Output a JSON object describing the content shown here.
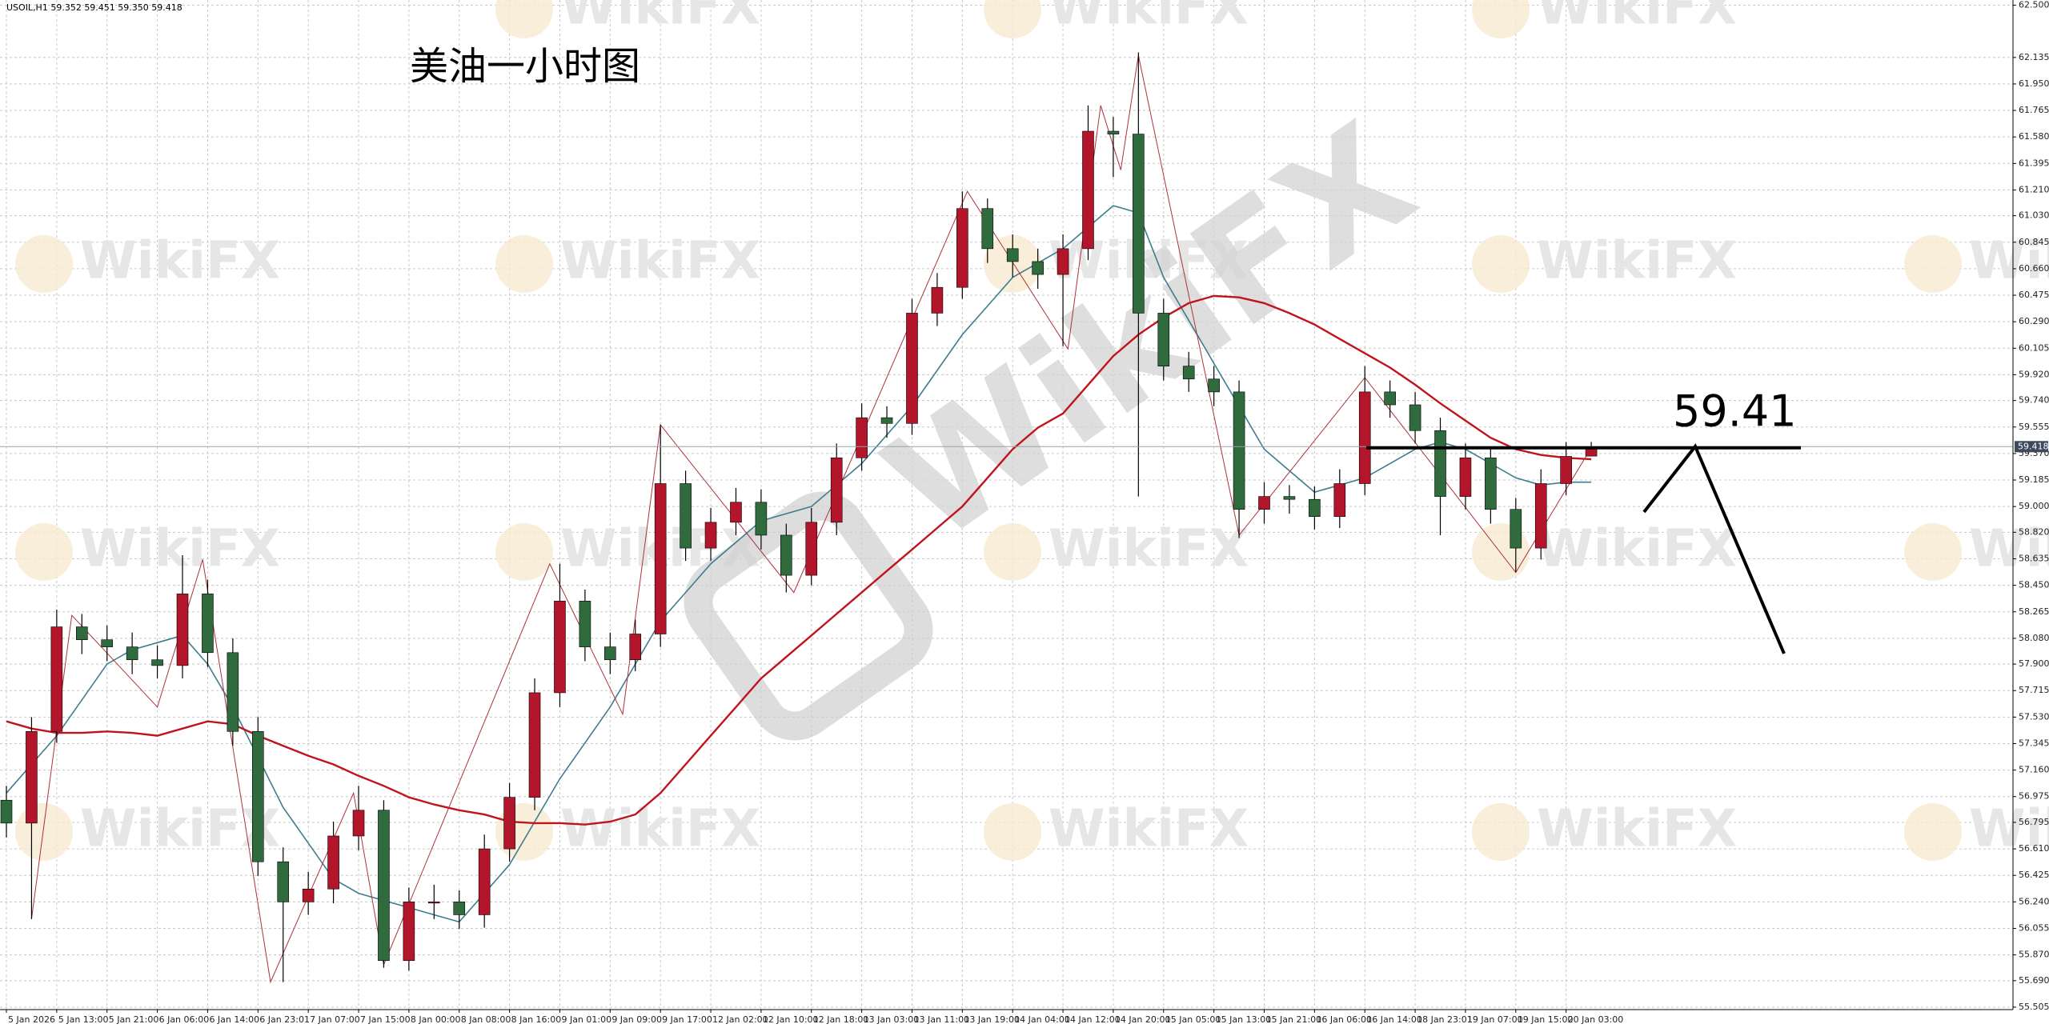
{
  "chart_data": {
    "type": "candlestick",
    "title": "美油一小时图",
    "header": "USOIL,H1  59.352 59.451 59.350 59.418",
    "watermark": "WikiFX",
    "bull_color": "#b3162b",
    "bear_color": "#2f6b3c",
    "grid": true,
    "ylim": [
      55.488,
      62.536
    ],
    "yticks": [
      {
        "value": 62.5,
        "label": "62.500"
      },
      {
        "value": 62.135,
        "label": "62.135"
      },
      {
        "value": 61.95,
        "label": "61.950"
      },
      {
        "value": 61.765,
        "label": "61.765"
      },
      {
        "value": 61.58,
        "label": "61.580"
      },
      {
        "value": 61.395,
        "label": "61.395"
      },
      {
        "value": 61.21,
        "label": "61.210"
      },
      {
        "value": 61.03,
        "label": "61.030"
      },
      {
        "value": 60.845,
        "label": "60.845"
      },
      {
        "value": 60.66,
        "label": "60.660"
      },
      {
        "value": 60.475,
        "label": "60.475"
      },
      {
        "value": 60.29,
        "label": "60.290"
      },
      {
        "value": 60.105,
        "label": "60.105"
      },
      {
        "value": 59.92,
        "label": "59.920"
      },
      {
        "value": 59.74,
        "label": "59.740"
      },
      {
        "value": 59.555,
        "label": "59.555"
      },
      {
        "value": 59.37,
        "label": "59.370"
      },
      {
        "value": 59.185,
        "label": "59.185"
      },
      {
        "value": 59,
        "label": "59.000"
      },
      {
        "value": 58.82,
        "label": "58.820"
      },
      {
        "value": 58.635,
        "label": "58.635"
      },
      {
        "value": 58.45,
        "label": "58.450"
      },
      {
        "value": 58.265,
        "label": "58.265"
      },
      {
        "value": 58.08,
        "label": "58.080"
      },
      {
        "value": 57.9,
        "label": "57.900"
      },
      {
        "value": 57.715,
        "label": "57.715"
      },
      {
        "value": 57.53,
        "label": "57.530"
      },
      {
        "value": 57.345,
        "label": "57.345"
      },
      {
        "value": 57.16,
        "label": "57.160"
      },
      {
        "value": 56.975,
        "label": "56.975"
      },
      {
        "value": 56.795,
        "label": "56.795"
      },
      {
        "value": 56.61,
        "label": "56.610"
      },
      {
        "value": 56.425,
        "label": "56.425"
      },
      {
        "value": 56.24,
        "label": "56.240"
      },
      {
        "value": 56.055,
        "label": "56.055"
      },
      {
        "value": 55.87,
        "label": "55.870"
      },
      {
        "value": 55.69,
        "label": "55.690"
      },
      {
        "value": 55.505,
        "label": "55.505"
      }
    ],
    "categories": [
      "5 Jan 2026",
      null,
      "5 Jan 13:00",
      null,
      "5 Jan 21:00",
      null,
      "6 Jan 06:00",
      null,
      "6 Jan 14:00",
      null,
      "6 Jan 23:01",
      null,
      "7 Jan 07:00",
      null,
      "7 Jan 15:00",
      null,
      "8 Jan 00:00",
      null,
      "8 Jan 08:00",
      null,
      "8 Jan 16:00",
      null,
      "9 Jan 01:00",
      null,
      "9 Jan 09:00",
      null,
      "9 Jan 17:00",
      null,
      "12 Jan 02:00",
      null,
      "12 Jan 10:00",
      null,
      "12 Jan 18:00",
      null,
      "13 Jan 03:00",
      null,
      "13 Jan 11:00",
      null,
      "13 Jan 19:00",
      null,
      "14 Jan 04:00",
      null,
      "14 Jan 12:00",
      null,
      "14 Jan 20:00",
      null,
      "15 Jan 05:00",
      null,
      "15 Jan 13:00",
      null,
      "15 Jan 21:00",
      null,
      "16 Jan 06:00",
      null,
      "16 Jan 14:00",
      null,
      "18 Jan 23:01",
      null,
      "19 Jan 07:00",
      null,
      "19 Jan 15:00",
      null,
      "20 Jan 03:00",
      null
    ],
    "open": [
      56.95,
      56.79,
      57.43,
      58.16,
      58.07,
      58.02,
      57.93,
      57.89,
      58.39,
      57.98,
      57.43,
      56.52,
      56.24,
      56.33,
      56.7,
      56.88,
      55.83,
      56.24,
      56.24,
      56.15,
      56.61,
      56.97,
      57.7,
      58.34,
      58.02,
      57.93,
      58.11,
      59.16,
      58.71,
      58.89,
      59.03,
      58.8,
      58.52,
      58.89,
      59.34,
      59.62,
      59.58,
      60.35,
      60.53,
      61.08,
      60.8,
      60.71,
      60.62,
      60.8,
      61.62,
      61.6,
      60.35,
      59.98,
      59.89,
      59.8,
      58.98,
      59.07,
      59.05,
      58.93,
      59.16,
      59.8,
      59.71,
      59.53,
      59.07,
      59.34,
      58.98,
      58.71,
      59.16,
      59.352
    ],
    "high": [
      57.05,
      57.53,
      58.28,
      58.25,
      58.17,
      58.12,
      58.03,
      58.66,
      58.49,
      58.08,
      57.53,
      56.62,
      56.45,
      56.8,
      57.05,
      56.95,
      56.34,
      56.36,
      56.32,
      56.71,
      57.07,
      57.8,
      58.6,
      58.42,
      58.12,
      58.21,
      59.57,
      59.25,
      58.99,
      59.13,
      59.12,
      58.88,
      58.99,
      59.44,
      59.72,
      59.7,
      60.45,
      60.63,
      61.2,
      61.15,
      60.9,
      60.8,
      60.9,
      61.8,
      61.72,
      62.17,
      60.45,
      60.08,
      59.98,
      59.88,
      59.17,
      59.15,
      59.14,
      59.26,
      59.98,
      59.88,
      59.8,
      59.62,
      59.44,
      59.42,
      59.06,
      59.26,
      59.45,
      59.451
    ],
    "low": [
      56.69,
      56.12,
      57.35,
      57.97,
      57.92,
      57.83,
      57.8,
      57.8,
      57.88,
      57.33,
      56.42,
      55.68,
      56.15,
      56.23,
      56.6,
      55.78,
      55.76,
      56.12,
      56.05,
      56.06,
      56.52,
      56.88,
      57.6,
      57.92,
      57.83,
      57.85,
      58.02,
      58.62,
      58.62,
      58.8,
      58.7,
      58.4,
      58.45,
      58.8,
      59.25,
      59.48,
      59.5,
      60.26,
      60.45,
      60.7,
      60.6,
      60.52,
      60.12,
      60.72,
      61.3,
      59.07,
      59.88,
      59.8,
      59.7,
      58.78,
      58.88,
      58.95,
      58.84,
      58.85,
      59.08,
      59.62,
      59.44,
      58.8,
      58.98,
      58.88,
      58.54,
      58.63,
      59.08,
      59.35
    ],
    "close": [
      56.79,
      57.43,
      58.16,
      58.07,
      58.02,
      57.93,
      57.89,
      58.39,
      57.98,
      57.43,
      56.52,
      56.24,
      56.33,
      56.7,
      56.88,
      55.83,
      56.24,
      56.24,
      56.15,
      56.61,
      56.97,
      57.7,
      58.34,
      58.02,
      57.93,
      58.11,
      59.16,
      58.71,
      58.89,
      59.03,
      58.8,
      58.52,
      58.89,
      59.34,
      59.62,
      59.58,
      60.35,
      60.53,
      61.08,
      60.8,
      60.71,
      60.62,
      60.8,
      61.62,
      61.6,
      60.35,
      59.98,
      59.89,
      59.8,
      58.98,
      59.07,
      59.05,
      58.93,
      59.16,
      59.8,
      59.71,
      59.53,
      59.07,
      59.34,
      58.98,
      58.71,
      59.16,
      59.35,
      59.418
    ],
    "series": [
      {
        "color": "#3d7d8e",
        "values": [
          57.0,
          57.2,
          57.4,
          57.65,
          57.9,
          58.0,
          58.05,
          58.1,
          57.9,
          57.6,
          57.25,
          56.9,
          56.65,
          56.4,
          56.3,
          56.25,
          56.2,
          56.15,
          56.1,
          56.3,
          56.5,
          56.8,
          57.1,
          57.35,
          57.6,
          57.9,
          58.2,
          58.4,
          58.6,
          58.75,
          58.9,
          58.95,
          59.0,
          59.15,
          59.3,
          59.5,
          59.7,
          59.95,
          60.2,
          60.4,
          60.6,
          60.7,
          60.8,
          60.95,
          61.1,
          61.05,
          60.6,
          60.3,
          60.0,
          59.7,
          59.4,
          59.25,
          59.1,
          59.15,
          59.2,
          59.3,
          59.4,
          59.45,
          59.4,
          59.3,
          59.2,
          59.15,
          59.17,
          59.17
        ]
      },
      {
        "color": "#c0141c",
        "values": [
          57.5,
          57.45,
          57.42,
          57.42,
          57.43,
          57.42,
          57.4,
          57.45,
          57.5,
          57.48,
          57.4,
          57.33,
          57.26,
          57.2,
          57.12,
          57.05,
          56.97,
          56.92,
          56.88,
          56.85,
          56.8,
          56.79,
          56.79,
          56.78,
          56.8,
          56.85,
          57.0,
          57.2,
          57.4,
          57.6,
          57.8,
          57.95,
          58.1,
          58.25,
          58.4,
          58.55,
          58.7,
          58.85,
          59.0,
          59.2,
          59.4,
          59.55,
          59.65,
          59.85,
          60.05,
          60.2,
          60.32,
          60.42,
          60.47,
          60.46,
          60.42,
          60.35,
          60.27,
          60.17,
          60.07,
          59.97,
          59.85,
          59.72,
          59.6,
          59.48,
          59.4,
          59.36,
          59.34,
          59.33
        ]
      }
    ],
    "zigzag": {
      "color": "#b0303a",
      "x": [
        1,
        2.6,
        6,
        7.8,
        10.5,
        13.8,
        15,
        21.6,
        24.5,
        26,
        31.3,
        38.2,
        42.2,
        43.5,
        44.3,
        45,
        49,
        54,
        60,
        63
      ],
      "values": [
        56.12,
        58.24,
        57.6,
        58.63,
        55.68,
        57.0,
        55.8,
        58.6,
        57.55,
        59.57,
        58.4,
        61.2,
        60.1,
        61.8,
        61.35,
        62.15,
        58.8,
        59.9,
        58.54,
        59.41
      ]
    },
    "annotation": {
      "text": "59.41",
      "value": 59.41
    }
  }
}
